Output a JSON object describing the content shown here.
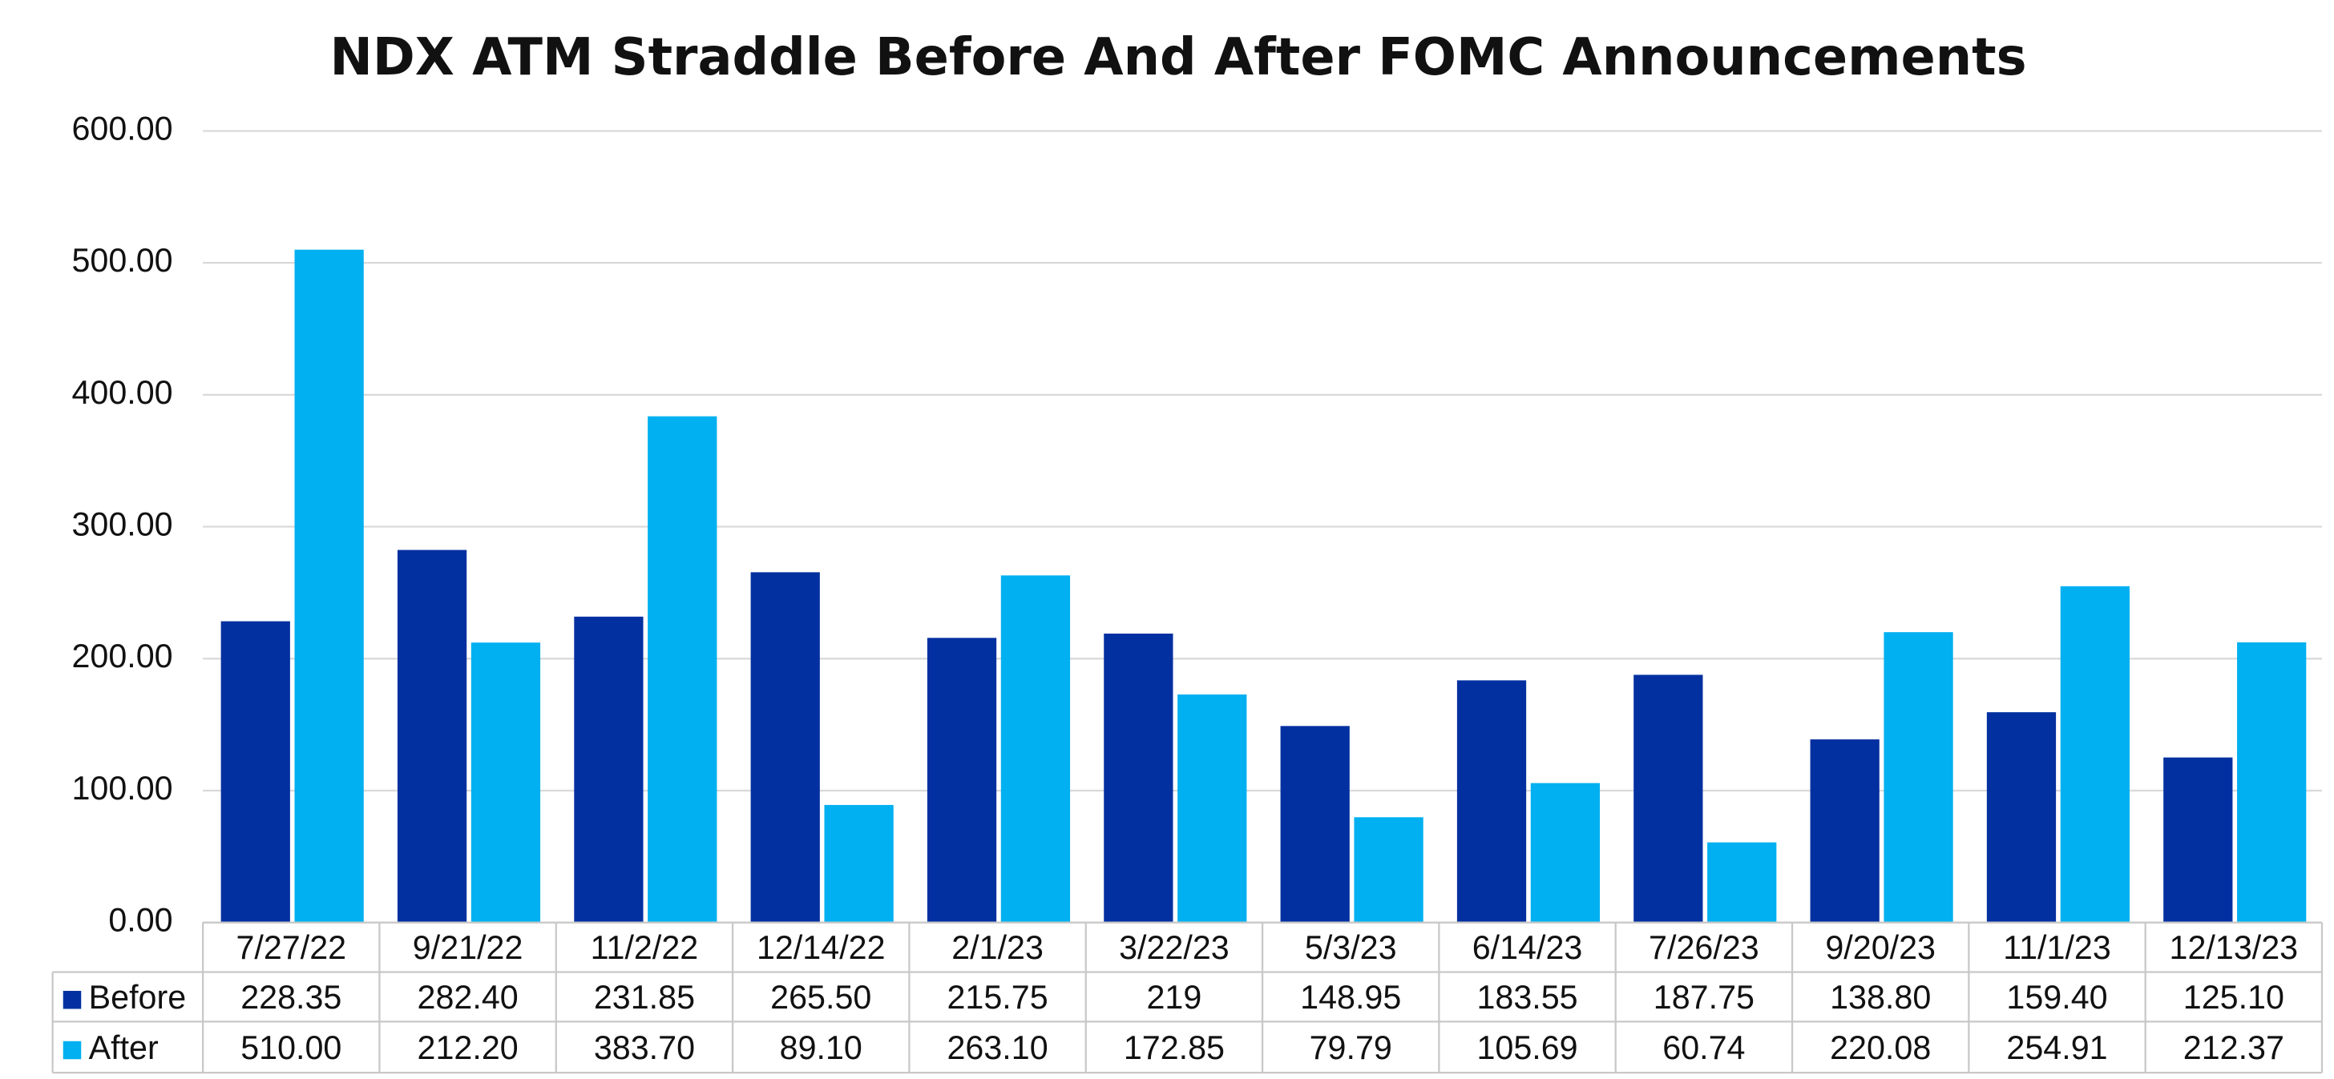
{
  "chart_data": {
    "type": "bar",
    "title": "NDX ATM Straddle Before And After FOMC Announcements",
    "categories": [
      "7/27/22",
      "9/21/22",
      "11/2/22",
      "12/14/22",
      "2/1/23",
      "3/22/23",
      "5/3/23",
      "6/14/23",
      "7/26/23",
      "9/20/23",
      "11/1/23",
      "12/13/23"
    ],
    "series": [
      {
        "name": "Before",
        "color": "#0330a0",
        "values": [
          228.35,
          282.4,
          231.85,
          265.5,
          215.75,
          219,
          148.95,
          183.55,
          187.75,
          138.8,
          159.4,
          125.1
        ],
        "value_labels": [
          "228.35",
          "282.40",
          "231.85",
          "265.50",
          "215.75",
          "219",
          "148.95",
          "183.55",
          "187.75",
          "138.80",
          "159.40",
          "125.10"
        ]
      },
      {
        "name": "After",
        "color": "#00b0f0",
        "values": [
          510,
          212.2,
          383.7,
          89.1,
          263.1,
          172.85,
          79.79,
          105.69,
          60.74,
          220.08,
          254.91,
          212.37
        ],
        "value_labels": [
          "510.00",
          "212.20",
          "383.70",
          "89.10",
          "263.10",
          "172.85",
          "79.79",
          "105.69",
          "60.74",
          "220.08",
          "254.91",
          "212.37"
        ]
      }
    ],
    "ylim": [
      0,
      600
    ],
    "yticks": [
      {
        "value": 0,
        "label": "0.00"
      },
      {
        "value": 100,
        "label": "100.00"
      },
      {
        "value": 200,
        "label": "200.00"
      },
      {
        "value": 300,
        "label": "300.00"
      },
      {
        "value": 400,
        "label": "400.00"
      },
      {
        "value": 500,
        "label": "500.00"
      },
      {
        "value": 600,
        "label": "600.00"
      }
    ],
    "grid": true,
    "data_table": true
  }
}
